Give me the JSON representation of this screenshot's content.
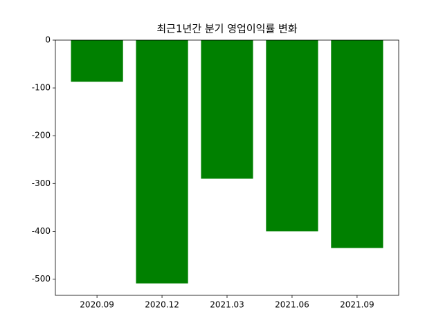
{
  "chart_data": {
    "type": "bar",
    "title": "최근1년간 분기 영업이익률 변화",
    "categories": [
      "2020.09",
      "2020.12",
      "2021.03",
      "2021.06",
      "2021.09"
    ],
    "values": [
      -87,
      -509,
      -290,
      -400,
      -435
    ],
    "color": "#008000",
    "ylim": [
      -534,
      0
    ],
    "yticks": [
      0,
      -100,
      -200,
      -300,
      -400,
      -500
    ]
  }
}
